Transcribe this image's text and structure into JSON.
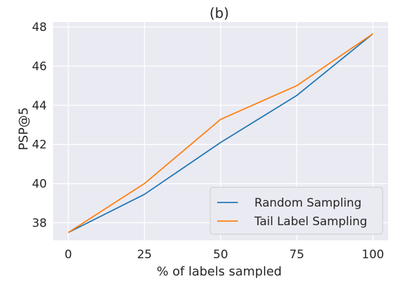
{
  "chart_data": {
    "type": "line",
    "title": "(b)",
    "xlabel": "% of labels sampled",
    "ylabel": "PSP@5",
    "x": [
      0,
      25,
      50,
      75,
      100
    ],
    "xticks": [
      "0",
      "25",
      "50",
      "75",
      "100"
    ],
    "yticks": [
      "38",
      "40",
      "42",
      "44",
      "46",
      "48"
    ],
    "xlim": [
      -5,
      105
    ],
    "ylim": [
      37.1,
      48.25
    ],
    "grid": true,
    "legend_position": "lower-right",
    "series": [
      {
        "name": "Random Sampling",
        "color": "#1f77b4",
        "values": [
          37.5,
          39.45,
          42.1,
          44.5,
          47.65
        ]
      },
      {
        "name": "Tail Label Sampling",
        "color": "#ff7f0e",
        "values": [
          37.5,
          40.0,
          43.28,
          45.0,
          47.65
        ]
      }
    ],
    "style": {
      "plot_bg": "#eaeaf2",
      "grid_color": "#ffffff",
      "legend_bg": "#eaeaf2",
      "legend_border": "#cccccc"
    }
  }
}
